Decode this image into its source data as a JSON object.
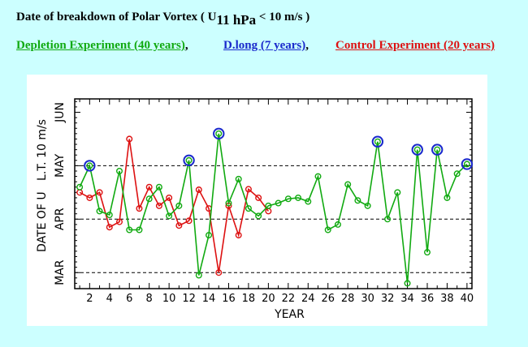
{
  "header": {
    "title_prefix": "Date of breakdown of Polar Vortex ( U",
    "title_subscript": "11 hPa",
    "title_suffix": " < 10 m/s )",
    "legend": [
      {
        "label": "Depletion Experiment (40 years)",
        "color": "#11aa11"
      },
      {
        "label": "D.long (7 years)",
        "color": "#1a2acc"
      },
      {
        "label": "Control Experiment (20 years)",
        "color": "#dd1111"
      }
    ],
    "separator": ","
  },
  "chart_data": {
    "type": "line",
    "xlabel": "YEAR",
    "ylabel": "DATE OF U   L.T. 10 m/s",
    "x_ticks": [
      2,
      4,
      6,
      8,
      10,
      12,
      14,
      16,
      18,
      20,
      22,
      24,
      26,
      28,
      30,
      32,
      34,
      36,
      38,
      40
    ],
    "y_month_labels": [
      "MAR",
      "APR",
      "MAY",
      "JUN"
    ],
    "y_units": "months (1 = Mar 1, 2 = Apr 1, 3 = May 1, 4 = Jun 1)",
    "ylim": [
      0.7,
      4.25
    ],
    "dashed_gridlines": [
      1.0,
      2.0,
      3.0
    ],
    "series": [
      {
        "name": "Depletion Experiment (40 years)",
        "color": "#11aa11",
        "x": [
          1,
          2,
          3,
          4,
          5,
          6,
          7,
          8,
          9,
          10,
          11,
          12,
          13,
          14,
          15,
          16,
          17,
          18,
          19,
          20,
          21,
          22,
          23,
          24,
          25,
          26,
          27,
          28,
          29,
          30,
          31,
          32,
          33,
          34,
          35,
          36,
          37,
          38,
          39,
          40
        ],
        "y": [
          2.6,
          3.0,
          2.15,
          2.08,
          2.9,
          1.8,
          1.8,
          2.38,
          2.6,
          2.06,
          2.25,
          3.1,
          0.95,
          1.7,
          3.6,
          2.3,
          2.75,
          2.2,
          2.06,
          2.25,
          2.3,
          2.38,
          2.4,
          2.33,
          2.8,
          1.8,
          1.9,
          2.65,
          2.35,
          2.25,
          3.45,
          2.0,
          2.5,
          0.8,
          3.3,
          1.38,
          3.3,
          2.4,
          2.85,
          3.03
        ]
      },
      {
        "name": "Control Experiment (20 years)",
        "color": "#dd1111",
        "x": [
          1,
          2,
          3,
          4,
          5,
          6,
          7,
          8,
          9,
          10,
          11,
          12,
          13,
          14,
          15,
          16,
          17,
          18,
          19,
          20
        ],
        "y": [
          2.5,
          2.4,
          2.5,
          1.85,
          1.95,
          3.5,
          2.2,
          2.6,
          2.25,
          2.4,
          1.88,
          1.97,
          2.55,
          2.2,
          1.0,
          2.25,
          1.7,
          2.56,
          2.4,
          2.15
        ]
      },
      {
        "name": "D.long (7 years)",
        "color": "#1a2acc",
        "x": [
          2,
          12,
          15,
          31,
          35,
          37,
          40
        ],
        "y": [
          3.0,
          3.1,
          3.6,
          3.45,
          3.3,
          3.3,
          3.03
        ]
      }
    ]
  }
}
